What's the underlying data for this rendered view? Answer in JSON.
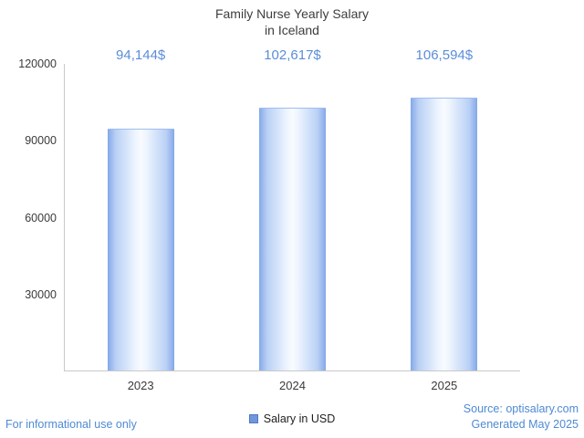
{
  "chart_data": {
    "type": "bar",
    "title_line1": "Family Nurse Yearly Salary",
    "title_line2": "in Iceland",
    "categories": [
      "2023",
      "2024",
      "2025"
    ],
    "values": [
      94144,
      102617,
      106594
    ],
    "value_labels": [
      "94,144$",
      "102,617$",
      "106,594$"
    ],
    "ylim": [
      0,
      120000
    ],
    "yticks": [
      30000,
      60000,
      90000,
      120000
    ],
    "ytick_labels": [
      "30000",
      "60000",
      "90000",
      "120000"
    ],
    "xlabel": "",
    "ylabel": "",
    "grid": false,
    "legend": {
      "label": "Salary in USD",
      "position": "bottom"
    }
  },
  "colors": {
    "bar_edge": "#84a8e8",
    "bar_center": "#f8fbff",
    "value_label": "#5b8dd9",
    "footer_text": "#4e8ad4",
    "axis_line": "#c9c9c9",
    "title_text": "#3d3d3d",
    "legend_marker": "#7096dc"
  },
  "footer": {
    "left": "For informational use only",
    "source_line": "Source: optisalary.com",
    "generated_line": "Generated May 2025"
  }
}
